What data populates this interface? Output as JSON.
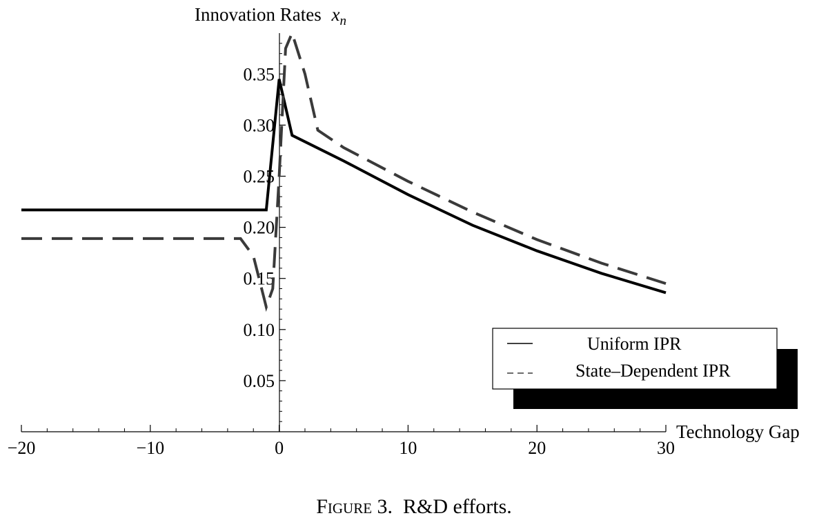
{
  "caption": {
    "figure": "Figure 3.",
    "text": "R&D efforts."
  },
  "chart_data": {
    "type": "line",
    "title": "",
    "ylabel_prefix": "Innovation Rates",
    "ylabel_var": "x",
    "ylabel_sub": "n",
    "xlabel": "Technology Gap",
    "xlim": [
      -20,
      30
    ],
    "ylim": [
      0,
      0.39
    ],
    "x_ticks": [
      {
        "value": -20,
        "label": "−20"
      },
      {
        "value": -10,
        "label": "−10"
      },
      {
        "value": 0,
        "label": "0"
      },
      {
        "value": 10,
        "label": "10"
      },
      {
        "value": 20,
        "label": "20"
      },
      {
        "value": 30,
        "label": "30"
      }
    ],
    "y_ticks": [
      {
        "value": 0.05,
        "label": "0.05"
      },
      {
        "value": 0.1,
        "label": "0.10"
      },
      {
        "value": 0.15,
        "label": "0.15"
      },
      {
        "value": 0.2,
        "label": "0.20"
      },
      {
        "value": 0.25,
        "label": "0.25"
      },
      {
        "value": 0.3,
        "label": "0.30"
      },
      {
        "value": 0.35,
        "label": "0.35"
      }
    ],
    "grid": false,
    "legend_position": "bottom-right",
    "series": [
      {
        "name": "Uniform IPR",
        "style": "solid",
        "color": "#000000",
        "x": [
          -20,
          -1,
          0,
          1,
          5,
          10,
          15,
          20,
          25,
          30
        ],
        "y": [
          0.217,
          0.217,
          0.345,
          0.29,
          0.265,
          0.232,
          0.202,
          0.177,
          0.155,
          0.136
        ]
      },
      {
        "name": "State–Dependent IPR",
        "style": "dashed",
        "color": "#3a3a3a",
        "x": [
          -20,
          -3,
          -2,
          -1,
          -0.5,
          0,
          0.5,
          1,
          2,
          3,
          5,
          10,
          15,
          20,
          25,
          30
        ],
        "y": [
          0.189,
          0.189,
          0.172,
          0.122,
          0.14,
          0.25,
          0.375,
          0.39,
          0.35,
          0.295,
          0.278,
          0.245,
          0.215,
          0.188,
          0.165,
          0.145
        ]
      }
    ]
  }
}
